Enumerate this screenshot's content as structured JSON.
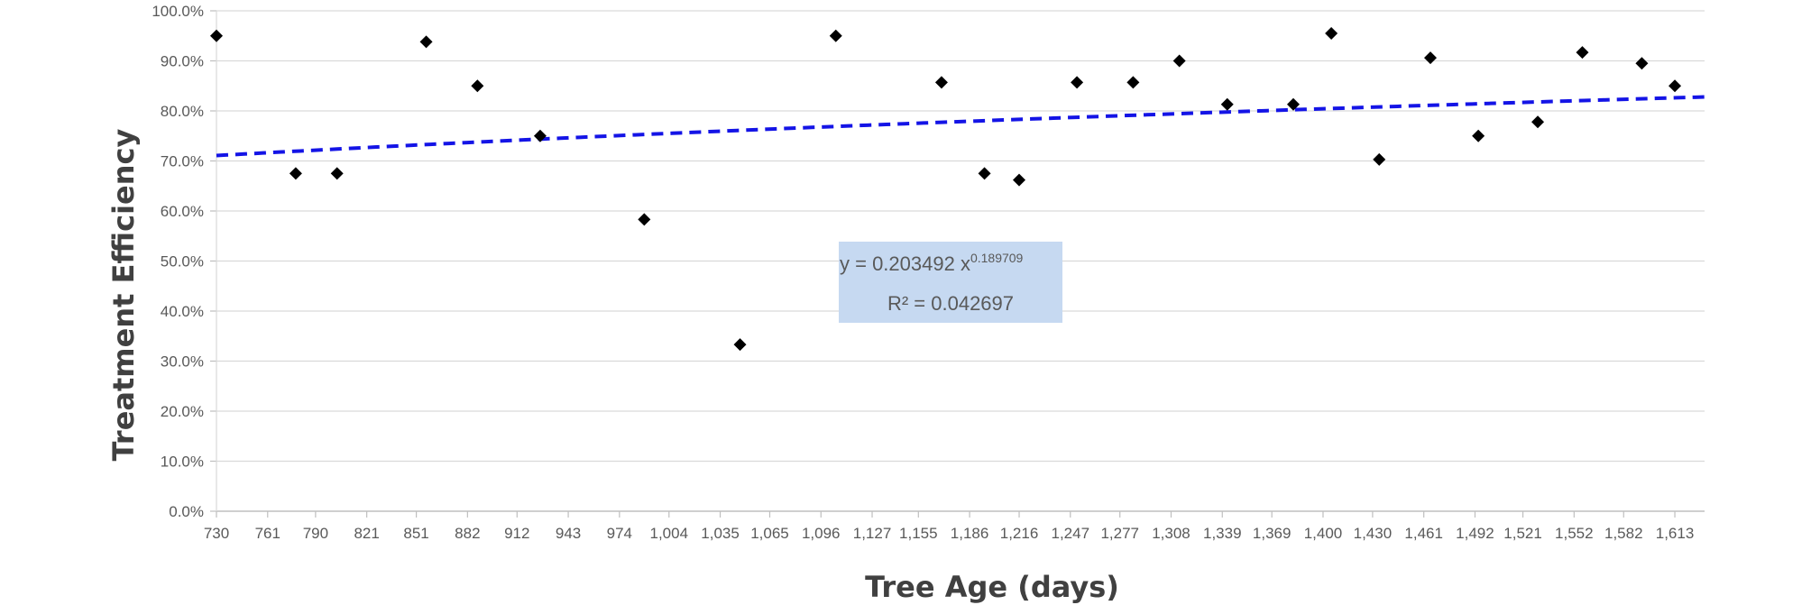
{
  "chart_data": {
    "type": "scatter",
    "xlabel": "Tree Age (days)",
    "ylabel": "Treatment Efficiency",
    "x_ticks": [
      "730",
      "761",
      "790",
      "821",
      "851",
      "882",
      "912",
      "943",
      "974",
      "1,004",
      "1,035",
      "1,065",
      "1,096",
      "1,127",
      "1,155",
      "1,186",
      "1,216",
      "1,247",
      "1,277",
      "1,308",
      "1,339",
      "1,369",
      "1,400",
      "1,430",
      "1,461",
      "1,492",
      "1,521",
      "1,552",
      "1,582",
      "1,613"
    ],
    "x_tick_values": [
      730,
      761,
      790,
      821,
      851,
      882,
      912,
      943,
      974,
      1004,
      1035,
      1065,
      1096,
      1127,
      1155,
      1186,
      1216,
      1247,
      1277,
      1308,
      1339,
      1369,
      1400,
      1430,
      1461,
      1492,
      1521,
      1552,
      1582,
      1613
    ],
    "xlim": [
      730,
      1631
    ],
    "y_ticks": [
      "0.0%",
      "10.0%",
      "20.0%",
      "30.0%",
      "40.0%",
      "50.0%",
      "60.0%",
      "70.0%",
      "80.0%",
      "90.0%",
      "100.0%"
    ],
    "ylim": [
      0,
      1
    ],
    "grid": "horizontal",
    "points": [
      {
        "x": 730,
        "y": 0.95
      },
      {
        "x": 778,
        "y": 0.675
      },
      {
        "x": 803,
        "y": 0.675
      },
      {
        "x": 857,
        "y": 0.938
      },
      {
        "x": 888,
        "y": 0.85
      },
      {
        "x": 926,
        "y": 0.75
      },
      {
        "x": 989,
        "y": 0.583
      },
      {
        "x": 1047,
        "y": 0.333
      },
      {
        "x": 1105,
        "y": 0.95
      },
      {
        "x": 1169,
        "y": 0.857
      },
      {
        "x": 1195,
        "y": 0.675
      },
      {
        "x": 1216,
        "y": 0.662
      },
      {
        "x": 1251,
        "y": 0.857
      },
      {
        "x": 1285,
        "y": 0.857
      },
      {
        "x": 1313,
        "y": 0.9
      },
      {
        "x": 1342,
        "y": 0.813
      },
      {
        "x": 1382,
        "y": 0.813
      },
      {
        "x": 1405,
        "y": 0.955
      },
      {
        "x": 1434,
        "y": 0.703
      },
      {
        "x": 1465,
        "y": 0.906
      },
      {
        "x": 1494,
        "y": 0.75
      },
      {
        "x": 1530,
        "y": 0.778
      },
      {
        "x": 1557,
        "y": 0.917
      },
      {
        "x": 1593,
        "y": 0.895
      },
      {
        "x": 1613,
        "y": 0.85
      }
    ],
    "trendline": {
      "type": "power",
      "a": 0.203492,
      "b": 0.189709,
      "color": "#1414e6",
      "style": "dashed"
    },
    "annotation": {
      "line1_prefix": "y = 0.203492 x",
      "line1_exponent": "0.189709",
      "line2": "R² = 0.042697",
      "background": "#c6d9f1"
    },
    "marker_color": "#000000",
    "gridline_color": "#d9d9d9"
  }
}
